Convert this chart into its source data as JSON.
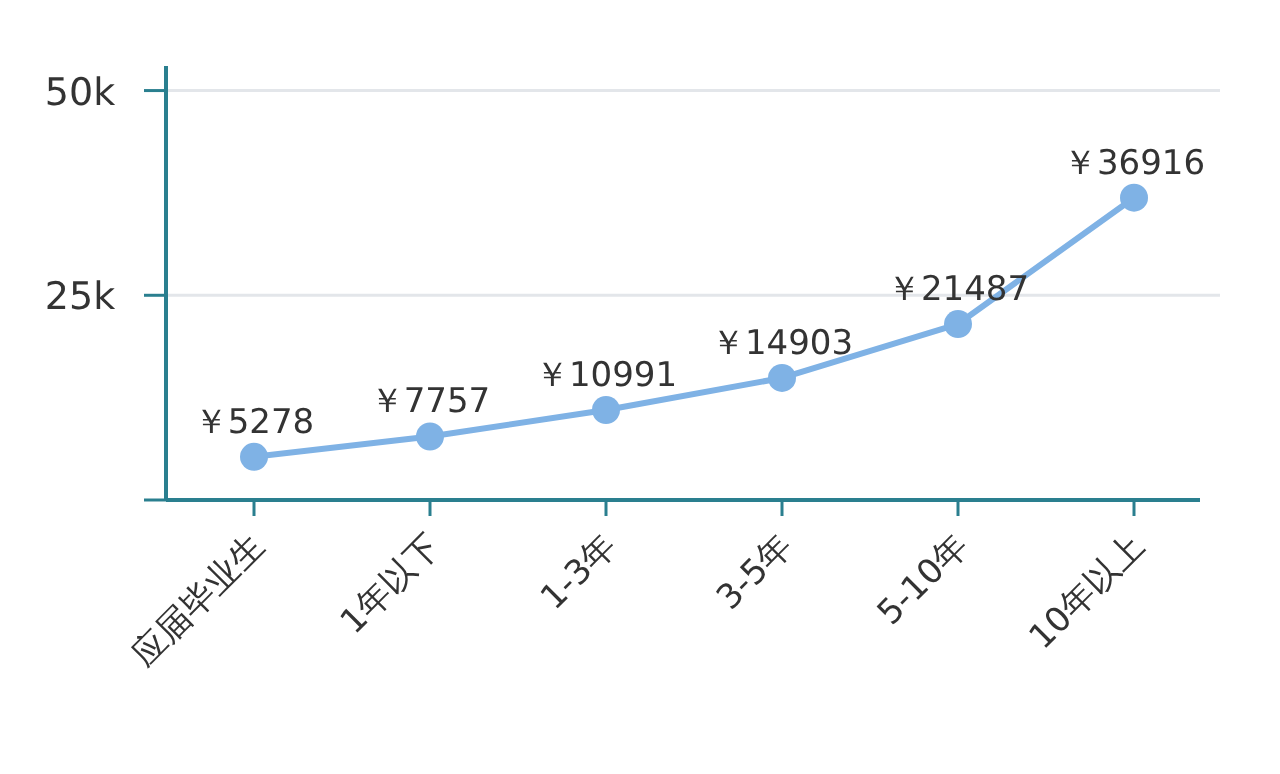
{
  "chart_data": {
    "type": "line",
    "categories": [
      "应届毕业生",
      "1年以下",
      "1-3年",
      "3-5年",
      "5-10年",
      "10年以上"
    ],
    "values": [
      5278,
      7757,
      10991,
      14903,
      21487,
      36916
    ],
    "value_labels": [
      "￥5278",
      "￥7757",
      "￥10991",
      "￥14903",
      "￥21487",
      "￥36916"
    ],
    "color": "#7fb2e5",
    "marker": "circle",
    "ylim": [
      0,
      53000
    ],
    "yticks": [
      {
        "value": 0,
        "label": null
      },
      {
        "value": 25000,
        "label": "25k"
      },
      {
        "value": 50000,
        "label": "50k"
      }
    ],
    "grid": "y"
  }
}
